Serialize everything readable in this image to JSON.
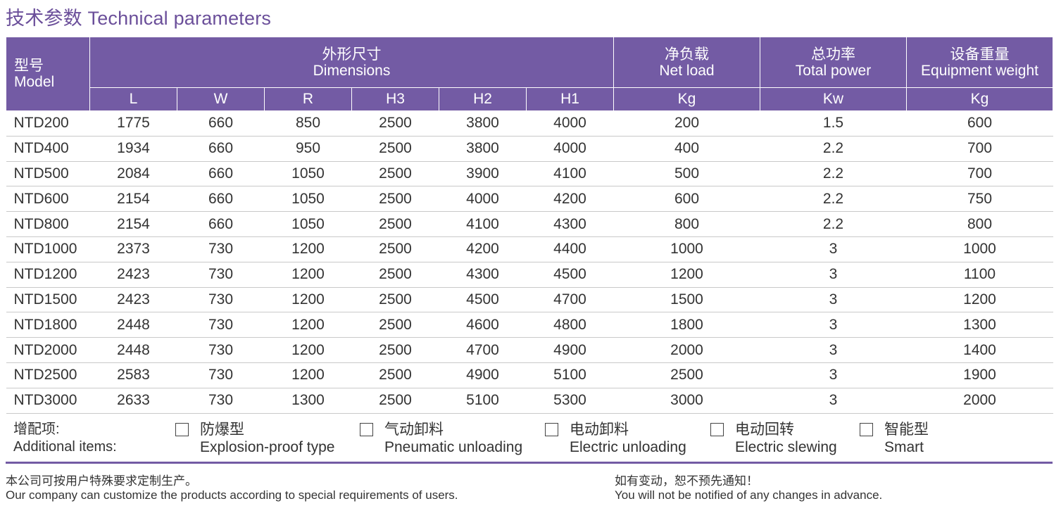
{
  "title": "技术参数 Technical parameters",
  "header": {
    "model_cn": "型号",
    "model_en": "Model",
    "dimensions_cn": "外形尺寸",
    "dimensions_en": "Dimensions",
    "netload_cn": "净负载",
    "netload_en": "Net load",
    "power_cn": "总功率",
    "power_en": "Total power",
    "weight_cn": "设备重量",
    "weight_en": "Equipment weight",
    "sub": [
      "L",
      "W",
      "R",
      "H3",
      "H2",
      "H1",
      "Kg",
      "Kw",
      "Kg"
    ]
  },
  "rows": [
    [
      "NTD200",
      "1775",
      "660",
      "850",
      "2500",
      "3800",
      "4000",
      "200",
      "1.5",
      "600"
    ],
    [
      "NTD400",
      "1934",
      "660",
      "950",
      "2500",
      "3800",
      "4000",
      "400",
      "2.2",
      "700"
    ],
    [
      "NTD500",
      "2084",
      "660",
      "1050",
      "2500",
      "3900",
      "4100",
      "500",
      "2.2",
      "700"
    ],
    [
      "NTD600",
      "2154",
      "660",
      "1050",
      "2500",
      "4000",
      "4200",
      "600",
      "2.2",
      "750"
    ],
    [
      "NTD800",
      "2154",
      "660",
      "1050",
      "2500",
      "4100",
      "4300",
      "800",
      "2.2",
      "800"
    ],
    [
      "NTD1000",
      "2373",
      "730",
      "1200",
      "2500",
      "4200",
      "4400",
      "1000",
      "3",
      "1000"
    ],
    [
      "NTD1200",
      "2423",
      "730",
      "1200",
      "2500",
      "4300",
      "4500",
      "1200",
      "3",
      "1100"
    ],
    [
      "NTD1500",
      "2423",
      "730",
      "1200",
      "2500",
      "4500",
      "4700",
      "1500",
      "3",
      "1200"
    ],
    [
      "NTD1800",
      "2448",
      "730",
      "1200",
      "2500",
      "4600",
      "4800",
      "1800",
      "3",
      "1300"
    ],
    [
      "NTD2000",
      "2448",
      "730",
      "1200",
      "2500",
      "4700",
      "4900",
      "2000",
      "3",
      "1400"
    ],
    [
      "NTD2500",
      "2583",
      "730",
      "1200",
      "2500",
      "4900",
      "5100",
      "2500",
      "3",
      "1900"
    ],
    [
      "NTD3000",
      "2633",
      "730",
      "1300",
      "2500",
      "5100",
      "5300",
      "3000",
      "3",
      "2000"
    ]
  ],
  "additional": {
    "label_cn": "增配项:",
    "label_en": "Additional items:",
    "options": [
      {
        "cn": "防爆型",
        "en": "Explosion-proof type"
      },
      {
        "cn": "气动卸料",
        "en": "Pneumatic unloading"
      },
      {
        "cn": "电动卸料",
        "en": "Electric unloading"
      },
      {
        "cn": "电动回转",
        "en": "Electric slewing"
      },
      {
        "cn": "智能型",
        "en": "Smart"
      }
    ]
  },
  "footer": {
    "left_cn": "本公司可按用户特殊要求定制生产。",
    "left_en": "Our company can customize the products according to special requirements of users.",
    "right_cn": "如有变动，恕不预先通知！",
    "right_en": "You will not be notified of any changes in advance."
  },
  "colors": {
    "accent": "#735ba4",
    "title": "#6b4f9a"
  }
}
